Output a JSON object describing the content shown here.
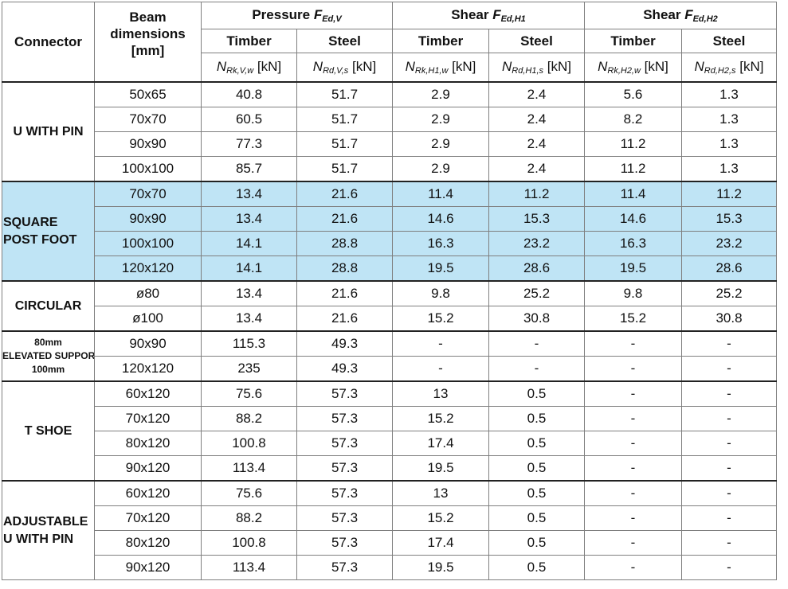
{
  "header": {
    "connector": "Connector",
    "beam": [
      "Beam",
      "dimensions",
      "[mm]"
    ],
    "groups": [
      {
        "main": "Pressure ",
        "sym": "F",
        "sub": "Ed,V"
      },
      {
        "main": "Shear ",
        "sym": "F",
        "sub": "Ed,H1"
      },
      {
        "main": "Shear ",
        "sym": "F",
        "sub": "Ed,H2"
      }
    ],
    "materials": [
      "Timber",
      "Steel",
      "Timber",
      "Steel",
      "Timber",
      "Steel"
    ],
    "units": [
      {
        "sym": "N",
        "sub": "Rk,V,w",
        "unit": " [kN]"
      },
      {
        "sym": "N",
        "sub": "Rd,V,s",
        "unit": " [kN]"
      },
      {
        "sym": "N",
        "sub": "Rk,H1,w",
        "unit": " [kN]"
      },
      {
        "sym": "N",
        "sub": "Rd,H1,s",
        "unit": " [kN]"
      },
      {
        "sym": "N",
        "sub": "Rk,H2,w",
        "unit": " [kN]"
      },
      {
        "sym": "N",
        "sub": "Rd,H2,s",
        "unit": " [kN]"
      }
    ]
  },
  "groups": [
    {
      "name": [
        "U WITH PIN"
      ],
      "rows": [
        [
          "50x65",
          "40.8",
          "51.7",
          "2.9",
          "2.4",
          "5.6",
          "1.3"
        ],
        [
          "70x70",
          "60.5",
          "51.7",
          "2.9",
          "2.4",
          "8.2",
          "1.3"
        ],
        [
          "90x90",
          "77.3",
          "51.7",
          "2.9",
          "2.4",
          "11.2",
          "1.3"
        ],
        [
          "100x100",
          "85.7",
          "51.7",
          "2.9",
          "2.4",
          "11.2",
          "1.3"
        ]
      ]
    },
    {
      "name": [
        "SQUARE",
        "POST FOOT"
      ],
      "rows": [
        [
          "70x70",
          "13.4",
          "21.6",
          "11.4",
          "11.2",
          "11.4",
          "11.2"
        ],
        [
          "90x90",
          "13.4",
          "21.6",
          "14.6",
          "15.3",
          "14.6",
          "15.3"
        ],
        [
          "100x100",
          "14.1",
          "28.8",
          "16.3",
          "23.2",
          "16.3",
          "23.2"
        ],
        [
          "120x120",
          "14.1",
          "28.8",
          "19.5",
          "28.6",
          "19.5",
          "28.6"
        ]
      ]
    },
    {
      "name": [
        "CIRCULAR"
      ],
      "rows": [
        [
          "ø80",
          "13.4",
          "21.6",
          "9.8",
          "25.2",
          "9.8",
          "25.2"
        ],
        [
          "ø100",
          "13.4",
          "21.6",
          "15.2",
          "30.8",
          "15.2",
          "30.8"
        ]
      ]
    },
    {
      "name": [
        "80mm",
        "ELEVATED SUPPORT",
        "100mm"
      ],
      "rows": [
        [
          "90x90",
          "115.3",
          "49.3",
          "-",
          "-",
          "-",
          "-"
        ],
        [
          "120x120",
          "235",
          "49.3",
          "-",
          "-",
          "-",
          "-"
        ]
      ]
    },
    {
      "name": [
        "T SHOE"
      ],
      "rows": [
        [
          "60x120",
          "75.6",
          "57.3",
          "13",
          "0.5",
          "-",
          "-"
        ],
        [
          "70x120",
          "88.2",
          "57.3",
          "15.2",
          "0.5",
          "-",
          "-"
        ],
        [
          "80x120",
          "100.8",
          "57.3",
          "17.4",
          "0.5",
          "-",
          "-"
        ],
        [
          "90x120",
          "113.4",
          "57.3",
          "19.5",
          "0.5",
          "-",
          "-"
        ]
      ]
    },
    {
      "name": [
        "ADJUSTABLE",
        "U WITH PIN"
      ],
      "rows": [
        [
          "60x120",
          "75.6",
          "57.3",
          "13",
          "0.5",
          "-",
          "-"
        ],
        [
          "70x120",
          "88.2",
          "57.3",
          "15.2",
          "0.5",
          "-",
          "-"
        ],
        [
          "80x120",
          "100.8",
          "57.3",
          "17.4",
          "0.5",
          "-",
          "-"
        ],
        [
          "90x120",
          "113.4",
          "57.3",
          "19.5",
          "0.5",
          "-",
          "-"
        ]
      ]
    }
  ]
}
